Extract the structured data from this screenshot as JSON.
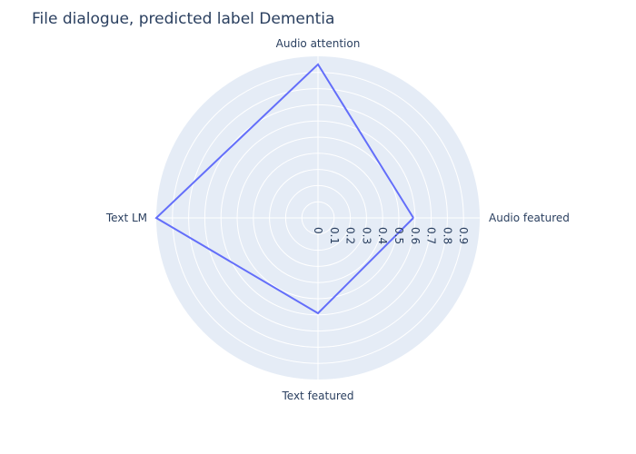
{
  "chart_data": {
    "type": "radar",
    "title": "File dialogue, predicted label Dementia",
    "categories": [
      "Audio featured",
      "Audio attention",
      "Text LM",
      "Text featured"
    ],
    "series": [
      {
        "values": [
          0.59,
          0.95,
          1.0,
          0.59
        ]
      }
    ],
    "radial_range": [
      0,
      1.0
    ],
    "radial_ticks": [
      0,
      0.1,
      0.2,
      0.3,
      0.4,
      0.5,
      0.6,
      0.7,
      0.8,
      0.9
    ],
    "grid": true,
    "colors": {
      "background": "#e5ecf6",
      "gridline": "#ffffff",
      "line": "#636efa",
      "text": "#2a3f5f"
    }
  }
}
